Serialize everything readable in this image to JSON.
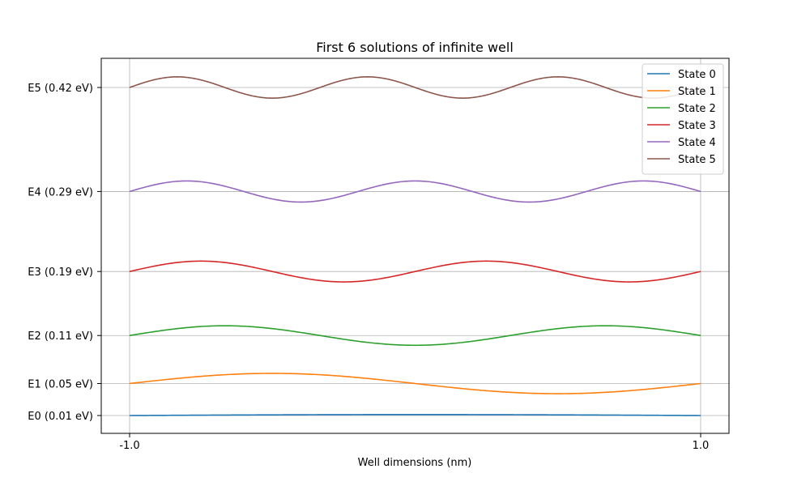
{
  "chart_data": {
    "type": "line",
    "title": "First 6 solutions of infinite well",
    "xlabel": "Well dimensions (nm)",
    "ylabel": "",
    "xlim": [
      -1.0,
      1.0
    ],
    "x_ticks": [
      -1.0,
      1.0
    ],
    "x_tick_labels": [
      "-1.0",
      "1.0"
    ],
    "grid": true,
    "legend_position": "top-right",
    "series": [
      {
        "name": "State 0",
        "color": "#1f77b4",
        "energy_label": "E0 (0.01 eV)",
        "baseline": 0.01,
        "amplitude": 0.0012,
        "n": 1
      },
      {
        "name": "State 1",
        "color": "#ff7f0e",
        "energy_label": "E1 (0.05 eV)",
        "baseline": 0.05,
        "amplitude": 0.0127,
        "n": 2
      },
      {
        "name": "State 2",
        "color": "#2ca02c",
        "energy_label": "E2 (0.11 eV)",
        "baseline": 0.11,
        "amplitude": 0.0122,
        "n": 3
      },
      {
        "name": "State 3",
        "color": "#d62728",
        "energy_label": "E3 (0.19 eV)",
        "baseline": 0.19,
        "amplitude": 0.013,
        "n": 4
      },
      {
        "name": "State 4",
        "color": "#9467bd",
        "energy_label": "E4 (0.29 eV)",
        "baseline": 0.29,
        "amplitude": 0.0132,
        "n": 5
      },
      {
        "name": "State 5",
        "color": "#8c564b",
        "energy_label": "E5 (0.42 eV)",
        "baseline": 0.42,
        "amplitude": 0.0133,
        "n": 6
      }
    ]
  }
}
